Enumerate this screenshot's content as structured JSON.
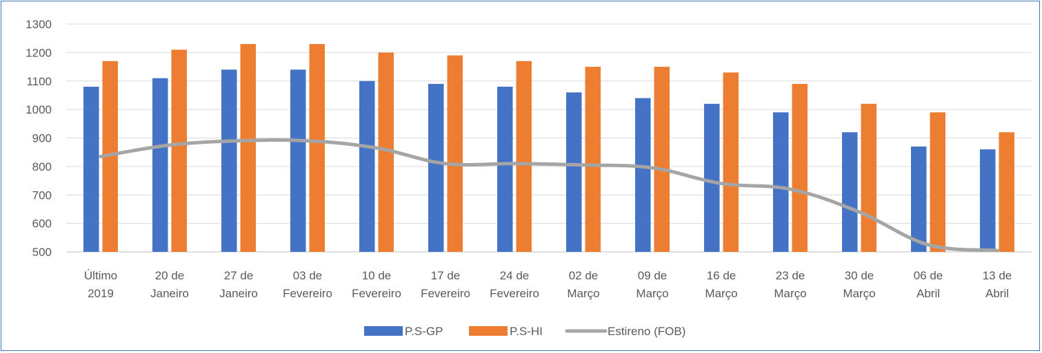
{
  "chart_data": {
    "type": "bar",
    "title": "",
    "xlabel": "",
    "ylabel": "",
    "ylim": [
      500,
      1300
    ],
    "yticks": [
      500,
      600,
      700,
      800,
      900,
      1000,
      1100,
      1200,
      1300
    ],
    "grid": "horizontal",
    "legend_position": "bottom",
    "categories": [
      [
        "Último",
        "2019"
      ],
      [
        "20 de",
        "Janeiro"
      ],
      [
        "27 de",
        "Janeiro"
      ],
      [
        "03 de",
        "Fevereiro"
      ],
      [
        "10 de",
        "Fevereiro"
      ],
      [
        "17 de",
        "Fevereiro"
      ],
      [
        "24 de",
        "Fevereiro"
      ],
      [
        "02 de",
        "Março"
      ],
      [
        "09 de",
        "Março"
      ],
      [
        "16 de",
        "Março"
      ],
      [
        "23 de",
        "Março"
      ],
      [
        "30 de",
        "Março"
      ],
      [
        "06 de",
        "Abril"
      ],
      [
        "13 de",
        "Abril"
      ]
    ],
    "series": [
      {
        "name": "P.S-GP",
        "kind": "bar",
        "color": "#4472C4",
        "values": [
          1080,
          1110,
          1140,
          1140,
          1100,
          1090,
          1080,
          1060,
          1040,
          1020,
          990,
          920,
          870,
          860
        ]
      },
      {
        "name": "P.S-HI",
        "kind": "bar",
        "color": "#ED7D31",
        "values": [
          1170,
          1210,
          1230,
          1230,
          1200,
          1190,
          1170,
          1150,
          1150,
          1130,
          1090,
          1020,
          990,
          920
        ]
      },
      {
        "name": "Estireno (FOB)",
        "kind": "line",
        "color": "#A5A5A5",
        "values": [
          835,
          875,
          890,
          890,
          865,
          810,
          810,
          805,
          795,
          740,
          720,
          640,
          525,
          505
        ]
      }
    ]
  }
}
